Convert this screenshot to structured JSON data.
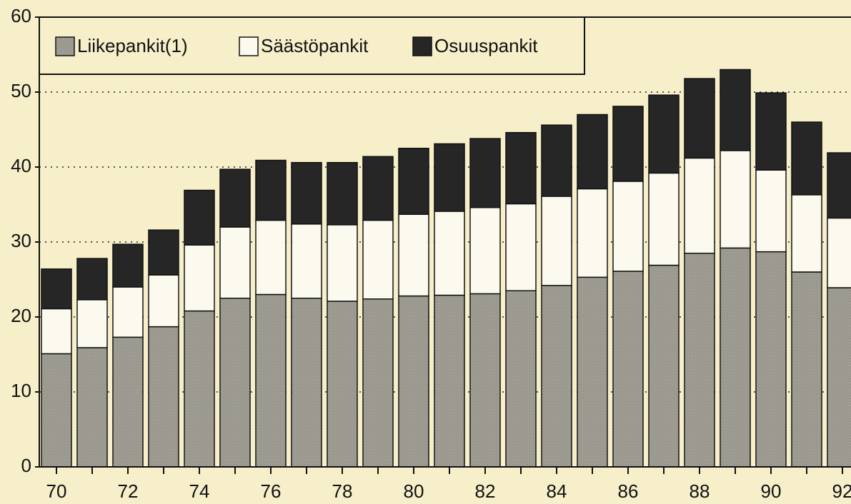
{
  "chart_data": {
    "type": "stacked_bar",
    "categories": [
      "70",
      null,
      "72",
      null,
      "74",
      null,
      "76",
      null,
      "78",
      null,
      "80",
      null,
      "82",
      null,
      "84",
      null,
      "86",
      null,
      "88",
      null,
      "90",
      null,
      "92"
    ],
    "series": [
      {
        "name": "Liikepankit(1)",
        "color": "#a19f94",
        "values": [
          15.1,
          15.9,
          17.3,
          18.7,
          20.8,
          22.5,
          23.0,
          22.5,
          22.1,
          22.4,
          22.8,
          22.9,
          23.1,
          23.5,
          24.2,
          25.3,
          26.1,
          26.9,
          28.5,
          29.2,
          28.7,
          26.0,
          23.9
        ]
      },
      {
        "name": "Säästöpankit",
        "color": "#fcfaef",
        "values": [
          6.0,
          6.4,
          6.7,
          6.9,
          8.8,
          9.5,
          9.9,
          9.9,
          10.2,
          10.5,
          10.9,
          11.2,
          11.5,
          11.6,
          11.9,
          11.8,
          12.0,
          12.3,
          12.7,
          13.0,
          10.9,
          10.3,
          9.3
        ]
      },
      {
        "name": "Osuuspankit",
        "color": "#262626",
        "values": [
          5.3,
          5.5,
          5.7,
          6.0,
          7.3,
          7.7,
          8.0,
          8.2,
          8.3,
          8.5,
          8.8,
          9.0,
          9.2,
          9.5,
          9.5,
          9.9,
          10.0,
          10.4,
          10.6,
          10.8,
          10.3,
          9.7,
          8.7
        ]
      }
    ],
    "ylim": [
      0,
      60
    ],
    "yticks": [
      0,
      10,
      20,
      30,
      40,
      50,
      60
    ],
    "grid": true,
    "legend": "top-left"
  }
}
